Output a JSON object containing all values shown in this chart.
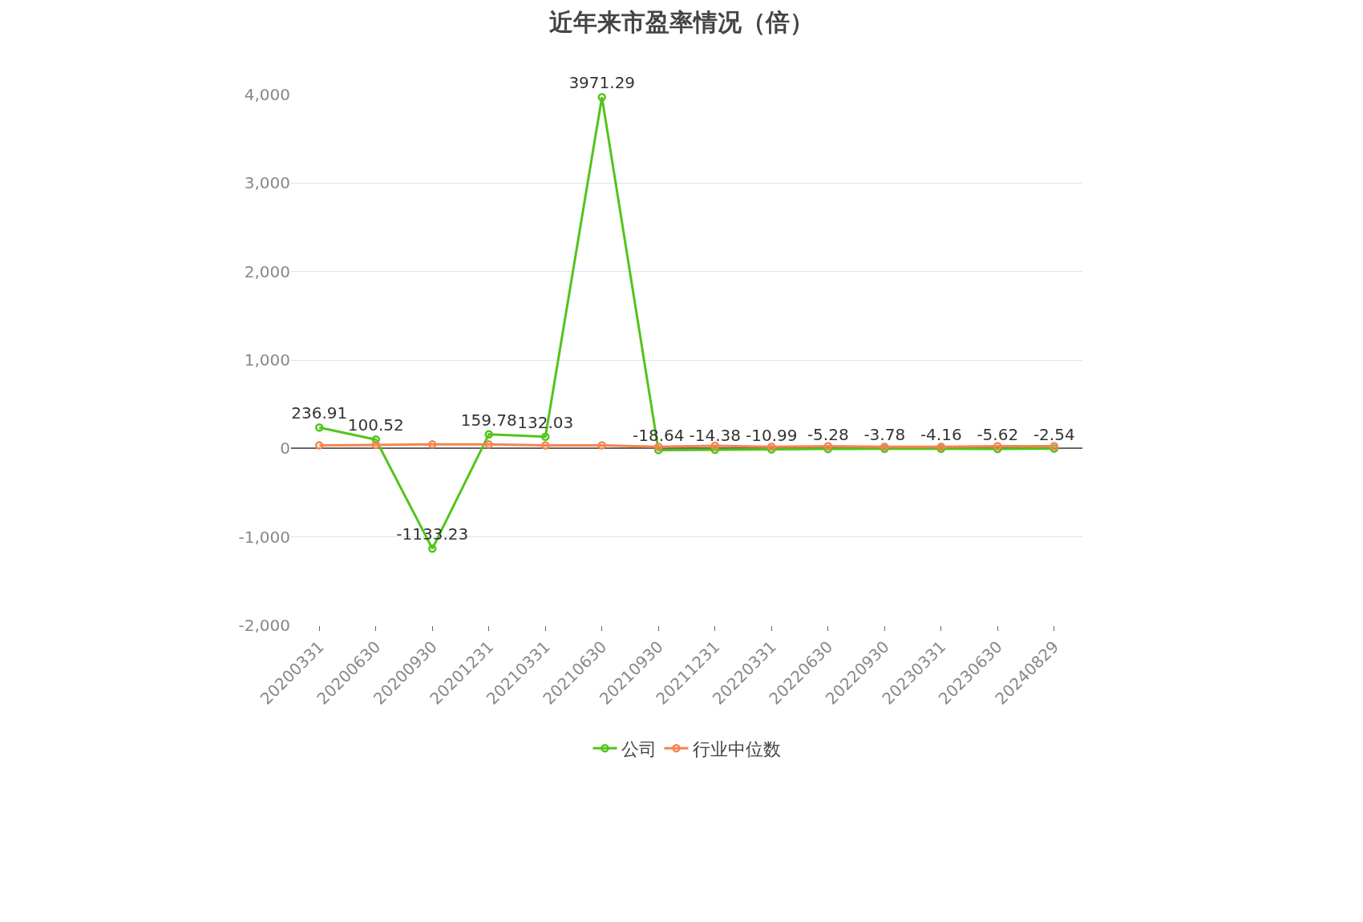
{
  "chart_data": {
    "type": "line",
    "title": "近年来市盈率情况（倍）",
    "categories": [
      "20200331",
      "20200630",
      "20200930",
      "20201231",
      "20210331",
      "20210630",
      "20210930",
      "20211231",
      "20220331",
      "20220630",
      "20220930",
      "20230331",
      "20230630",
      "20240829"
    ],
    "series": [
      {
        "name": "公司",
        "color": "#52c41a",
        "values": [
          236.91,
          100.52,
          -1133.23,
          159.78,
          132.03,
          3971.29,
          -18.64,
          -14.38,
          -10.99,
          -5.28,
          -3.78,
          -4.16,
          -5.62,
          -2.54
        ],
        "value_labels": [
          "236.91",
          "100.52",
          "-1133.23",
          "159.78",
          "132.03",
          "3971.29",
          "-18.64",
          "-14.38",
          "-10.99",
          "-5.28",
          "-3.78",
          "-4.16",
          "-5.62",
          "-2.54"
        ]
      },
      {
        "name": "行业中位数",
        "color": "#f5844f",
        "values": [
          35,
          40,
          45,
          45,
          35,
          35,
          20,
          30,
          20,
          25,
          20,
          20,
          25,
          25
        ]
      }
    ],
    "ylim": [
      -2000,
      4000
    ],
    "yticks": [
      {
        "value": -2000,
        "label": "-2,000"
      },
      {
        "value": -1000,
        "label": "-1,000"
      },
      0,
      {
        "value": 1000,
        "label": "1,000"
      },
      {
        "value": 2000,
        "label": "2,000"
      },
      {
        "value": 3000,
        "label": "3,000"
      },
      {
        "value": 4000,
        "label": "4,000"
      }
    ],
    "grid": "y",
    "legend": "bottom",
    "marker": "circle",
    "line_style": "solid"
  }
}
